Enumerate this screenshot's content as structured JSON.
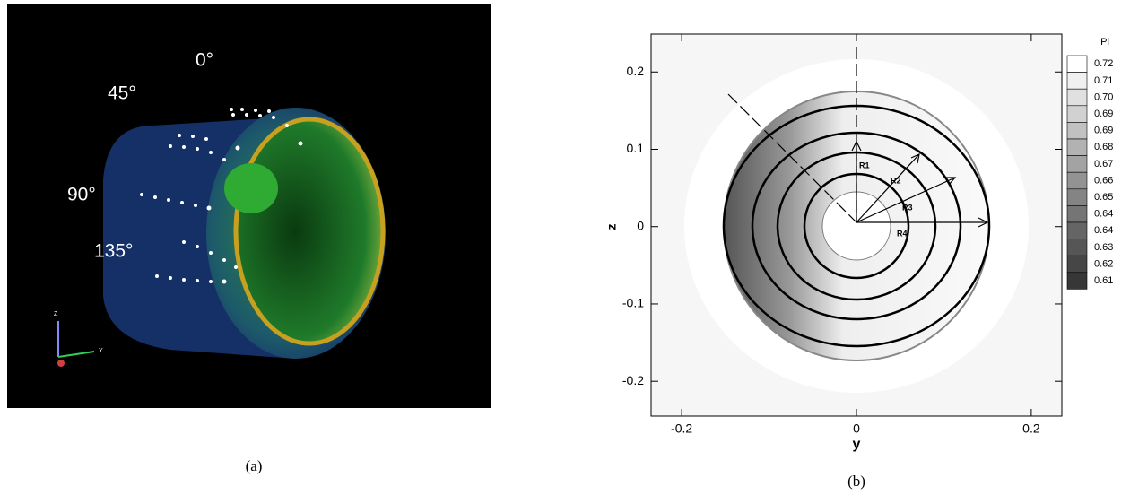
{
  "panel_a": {
    "angle_labels": [
      "0°",
      "45°",
      "90°",
      "135°"
    ],
    "triad": [
      "Z",
      "Y"
    ],
    "caption": "(a)"
  },
  "panel_b": {
    "x_label": "y",
    "y_label": "z",
    "xlim": [
      -0.235,
      0.235
    ],
    "ylim": [
      -0.245,
      0.249
    ],
    "xticks": [
      -0.2,
      0,
      0.2
    ],
    "yticks": [
      -0.2,
      -0.1,
      0,
      0.1,
      0.2
    ],
    "radii": [
      "R1",
      "R2",
      "R3",
      "R4"
    ],
    "legend": {
      "title": "Pi",
      "levels": [
        "0.72",
        "0.71",
        "0.70",
        "0.69",
        "0.69",
        "0.68",
        "0.67",
        "0.66",
        "0.65",
        "0.64",
        "0.64",
        "0.63",
        "0.62",
        "0.61"
      ]
    },
    "caption": "(b)"
  }
}
